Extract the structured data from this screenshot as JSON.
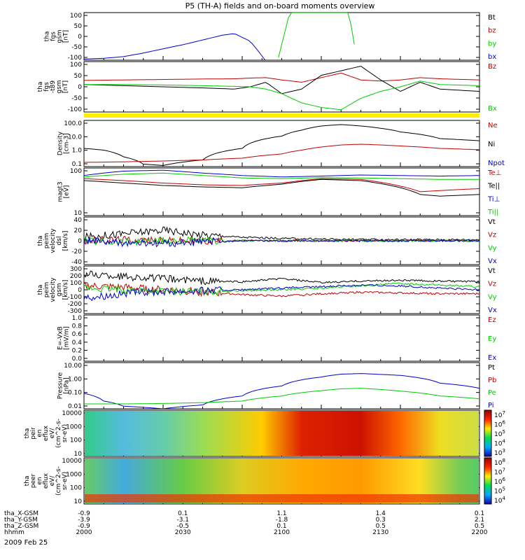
{
  "title": "P5 (TH-A) fields and on-board moments overview",
  "date_label": "2009 Feb 25",
  "colors": {
    "black": "#000000",
    "red": "#c00000",
    "green": "#00cc00",
    "blue": "#0000cc",
    "yellow": "#ffee00"
  },
  "chart_data": [
    {
      "type": "line",
      "panel": "fgs",
      "ylabel": [
        "tha",
        "fgs",
        "gsm",
        "[nT]"
      ],
      "yticks": [
        "100",
        "50",
        "0",
        "-50",
        "-100"
      ],
      "ylim": [
        -100,
        100
      ],
      "legend": [
        {
          "label": "Bt",
          "color": "black"
        },
        {
          "label": "bz",
          "color": "red"
        },
        {
          "label": "by",
          "color": "green"
        },
        {
          "label": "bx",
          "color": "blue"
        }
      ],
      "series": [
        {
          "name": "bx",
          "color": "blue",
          "x": [
            0,
            0.05,
            0.1,
            0.15,
            0.2,
            0.25,
            0.3,
            0.35,
            0.38,
            0.42,
            0.44,
            0.46
          ],
          "y": [
            -95,
            -92,
            -85,
            -70,
            -52,
            -35,
            -15,
            5,
            12,
            -20,
            -60,
            -105
          ]
        },
        {
          "name": "by",
          "color": "green",
          "x": [
            0.49,
            0.52,
            0.53,
            0.66,
            0.67,
            0.69
          ],
          "y": [
            -100,
            100,
            100,
            100,
            100,
            -100
          ]
        }
      ]
    },
    {
      "type": "line",
      "panel": "fgs_t89",
      "ylabel": [
        "tha",
        "fgs",
        "-t89",
        "gsm",
        "[nT]"
      ],
      "yticks": [
        "100",
        "50",
        "0",
        "-50",
        "-100"
      ],
      "ylim": [
        -120,
        100
      ],
      "legend": [
        {
          "label": "Bz",
          "color": "red"
        },
        {
          "label": "Bx",
          "color": "green"
        }
      ],
      "series": [
        {
          "name": "Bz",
          "color": "red",
          "x": [
            0,
            0.1,
            0.2,
            0.3,
            0.38,
            0.42,
            0.46,
            0.5,
            0.55,
            0.6,
            0.65,
            0.7,
            0.75,
            0.8,
            0.85,
            0.9,
            1
          ],
          "y": [
            18,
            20,
            22,
            24,
            25,
            28,
            30,
            20,
            10,
            30,
            50,
            20,
            15,
            20,
            30,
            25,
            20
          ]
        },
        {
          "name": "black",
          "color": "black",
          "x": [
            0,
            0.1,
            0.2,
            0.3,
            0.35,
            0.38,
            0.42,
            0.46,
            0.5,
            0.55,
            0.6,
            0.65,
            0.7,
            0.75,
            0.8,
            0.85,
            0.9,
            1
          ],
          "y": [
            0,
            -5,
            -10,
            -15,
            -18,
            -20,
            -10,
            10,
            -40,
            -20,
            40,
            60,
            80,
            20,
            -30,
            10,
            -20,
            -30
          ]
        },
        {
          "name": "Bx",
          "color": "green",
          "x": [
            0,
            0.1,
            0.2,
            0.3,
            0.38,
            0.42,
            0.46,
            0.5,
            0.55,
            0.6,
            0.65,
            0.7,
            0.75,
            0.8,
            0.85,
            0.9,
            1
          ],
          "y": [
            0,
            0,
            -2,
            -5,
            -8,
            -10,
            -20,
            -40,
            -80,
            -100,
            -110,
            -60,
            -30,
            -10,
            15,
            0,
            -5
          ]
        }
      ]
    },
    {
      "type": "line",
      "panel": "density",
      "ylog": true,
      "ylabel": [
        "Density",
        "[cm-3]"
      ],
      "yticks": [
        "100.0",
        "10.0",
        "1.0",
        "0.1"
      ],
      "ylim": [
        0.1,
        200
      ],
      "legend": [
        {
          "label": "Ne",
          "color": "red"
        },
        {
          "label": "Ni",
          "color": "black"
        },
        {
          "label": "Npot",
          "color": "blue"
        }
      ],
      "series": [
        {
          "name": "Ni",
          "color": "black",
          "x": [
            0,
            0.05,
            0.1,
            0.15,
            0.2,
            0.3,
            0.4,
            0.5,
            0.55,
            0.6,
            0.65,
            0.7,
            0.8,
            0.9,
            1
          ],
          "y": [
            2,
            1.5,
            0.5,
            0.15,
            0.12,
            0.3,
            2,
            15,
            40,
            80,
            100,
            80,
            30,
            10,
            7
          ]
        },
        {
          "name": "Ne",
          "color": "red",
          "x": [
            0,
            0.1,
            0.2,
            0.3,
            0.4,
            0.5,
            0.55,
            0.6,
            0.65,
            0.7,
            0.8,
            0.9,
            1
          ],
          "y": [
            0.2,
            0.22,
            0.25,
            0.3,
            0.4,
            0.8,
            1.5,
            2.5,
            3.5,
            4,
            3,
            2,
            1.6
          ]
        }
      ]
    },
    {
      "type": "line",
      "panel": "temperature",
      "ylog": true,
      "ylabel": [
        "magt3",
        "[eV]"
      ],
      "yticks": [
        "100",
        "10"
      ],
      "ylim": [
        10,
        800
      ],
      "legend": [
        {
          "label": "Te⊥",
          "color": "red"
        },
        {
          "label": "Te||",
          "color": "black"
        },
        {
          "label": "Ti⊥",
          "color": "blue"
        },
        {
          "label": "Ti||",
          "color": "green"
        }
      ],
      "series": [
        {
          "name": "Ti⊥",
          "color": "blue",
          "x": [
            0,
            0.1,
            0.2,
            0.3,
            0.4,
            0.5,
            0.6,
            0.7,
            0.8,
            0.9,
            1
          ],
          "y": [
            400,
            600,
            650,
            500,
            400,
            350,
            380,
            420,
            400,
            380,
            400
          ]
        },
        {
          "name": "Ti||",
          "color": "green",
          "x": [
            0,
            0.1,
            0.2,
            0.3,
            0.4,
            0.5,
            0.6,
            0.7,
            0.8,
            0.9,
            1
          ],
          "y": [
            350,
            450,
            500,
            400,
            320,
            300,
            330,
            320,
            300,
            280,
            280
          ]
        },
        {
          "name": "Te⊥",
          "color": "red",
          "x": [
            0,
            0.1,
            0.2,
            0.3,
            0.4,
            0.5,
            0.6,
            0.7,
            0.8,
            0.85,
            0.9,
            1
          ],
          "y": [
            300,
            250,
            200,
            170,
            160,
            200,
            300,
            280,
            150,
            90,
            100,
            120
          ]
        },
        {
          "name": "Te||",
          "color": "black",
          "x": [
            0,
            0.1,
            0.2,
            0.3,
            0.4,
            0.5,
            0.6,
            0.7,
            0.8,
            0.85,
            0.9,
            1
          ],
          "y": [
            250,
            200,
            160,
            140,
            130,
            180,
            280,
            250,
            130,
            70,
            60,
            70
          ]
        }
      ]
    },
    {
      "type": "line",
      "panel": "velocity_dsl",
      "ylabel": [
        "tha",
        "peim",
        "velocity",
        "dsl",
        "[km/s]"
      ],
      "yticks": [
        "40",
        "20",
        "0",
        "-20",
        "-40"
      ],
      "ylim": [
        -40,
        40
      ],
      "legend": [
        {
          "label": "Vt",
          "color": "black"
        },
        {
          "label": "Vz",
          "color": "red"
        },
        {
          "label": "Vy",
          "color": "green"
        },
        {
          "label": "Vx",
          "color": "blue"
        }
      ],
      "noisy": true,
      "series": [
        {
          "name": "Vt",
          "color": "black",
          "x": [
            0,
            0.1,
            0.2,
            0.3,
            0.4,
            0.5,
            0.6,
            0.7,
            0.8,
            0.9,
            1
          ],
          "y": [
            6,
            12,
            18,
            10,
            6,
            4,
            3,
            2,
            2,
            2,
            2
          ]
        },
        {
          "name": "Vz",
          "color": "red",
          "x": [
            0,
            0.1,
            0.2,
            0.3,
            0.4,
            0.5,
            0.6,
            0.7,
            0.8,
            0.9,
            1
          ],
          "y": [
            0,
            2,
            0,
            0,
            0,
            0,
            0,
            0,
            0,
            0,
            0
          ]
        },
        {
          "name": "Vy",
          "color": "green",
          "x": [
            0,
            0.1,
            0.2,
            0.3,
            0.4,
            0.5,
            0.6,
            0.7,
            0.8,
            0.9,
            1
          ],
          "y": [
            0,
            -2,
            0,
            0,
            0,
            0,
            0,
            0,
            0,
            0,
            0
          ]
        },
        {
          "name": "Vx",
          "color": "blue",
          "x": [
            0,
            0.1,
            0.2,
            0.3,
            0.4,
            0.5,
            0.6,
            0.7,
            0.8,
            0.9,
            1
          ],
          "y": [
            0,
            -4,
            -5,
            -2,
            0,
            0,
            0,
            0,
            0,
            0,
            0
          ]
        }
      ]
    },
    {
      "type": "line",
      "panel": "velocity_gsm",
      "ylabel": [
        "tha",
        "peim",
        "velocity",
        "gsm",
        "[km/s]"
      ],
      "yticks": [
        "300",
        "200",
        "100",
        "0",
        "-100",
        "-200",
        "-300"
      ],
      "ylim": [
        -300,
        300
      ],
      "legend": [
        {
          "label": "Vt",
          "color": "black"
        },
        {
          "label": "Vz",
          "color": "red"
        },
        {
          "label": "Vy",
          "color": "green"
        },
        {
          "label": "Vx",
          "color": "blue"
        }
      ],
      "noisy": true,
      "series": [
        {
          "name": "Vt",
          "color": "black",
          "x": [
            0,
            0.1,
            0.2,
            0.3,
            0.4,
            0.5,
            0.6,
            0.7,
            0.8,
            0.9,
            1
          ],
          "y": [
            200,
            170,
            140,
            110,
            100,
            140,
            90,
            110,
            120,
            110,
            100
          ]
        },
        {
          "name": "Vz",
          "color": "red",
          "x": [
            0,
            0.1,
            0.2,
            0.3,
            0.4,
            0.5,
            0.6,
            0.7,
            0.8,
            0.9,
            1
          ],
          "y": [
            50,
            30,
            0,
            -30,
            -60,
            -80,
            -50,
            -30,
            -40,
            -50,
            -50
          ]
        },
        {
          "name": "Vy",
          "color": "green",
          "x": [
            0,
            0.1,
            0.2,
            0.3,
            0.4,
            0.5,
            0.6,
            0.7,
            0.8,
            0.9,
            1
          ],
          "y": [
            20,
            0,
            -20,
            -20,
            -10,
            0,
            20,
            50,
            80,
            60,
            40
          ]
        },
        {
          "name": "Vx",
          "color": "blue",
          "x": [
            0,
            0.1,
            0.2,
            0.3,
            0.4,
            0.5,
            0.6,
            0.7,
            0.8,
            0.9,
            1
          ],
          "y": [
            -100,
            -50,
            -20,
            -10,
            0,
            20,
            40,
            60,
            50,
            20,
            0
          ]
        }
      ]
    },
    {
      "type": "line",
      "panel": "efield",
      "ylabel": [
        "E=-VxB",
        "[mV/m]"
      ],
      "yticks": [
        "1.0",
        "0.8",
        "0.6",
        "0.4",
        "0.2",
        "0.0"
      ],
      "ylim": [
        0,
        1
      ],
      "legend": [
        {
          "label": "Ez",
          "color": "red"
        },
        {
          "label": "Ey",
          "color": "green"
        },
        {
          "label": "Ex",
          "color": "blue"
        }
      ],
      "series": []
    },
    {
      "type": "line",
      "panel": "pressure",
      "ylog": true,
      "ylabel": [
        "Pressure",
        "[nPa]"
      ],
      "yticks": [
        "10.00",
        "1.00",
        "0.10",
        "0.01"
      ],
      "ylim": [
        0.005,
        20
      ],
      "legend": [
        {
          "label": "Pt",
          "color": "black"
        },
        {
          "label": "Pb",
          "color": "red"
        },
        {
          "label": "Pe",
          "color": "green"
        },
        {
          "label": "Pi",
          "color": "blue"
        }
      ],
      "series": [
        {
          "name": "Pi",
          "color": "blue",
          "x": [
            0,
            0.05,
            0.1,
            0.2,
            0.3,
            0.4,
            0.5,
            0.6,
            0.65,
            0.7,
            0.8,
            0.9,
            1
          ],
          "y": [
            0.08,
            0.02,
            0.008,
            0.005,
            0.01,
            0.05,
            0.3,
            1.5,
            2.5,
            2.8,
            2,
            0.5,
            0.2
          ]
        },
        {
          "name": "Pe",
          "color": "green",
          "x": [
            0,
            0.1,
            0.2,
            0.3,
            0.4,
            0.5,
            0.6,
            0.65,
            0.7,
            0.8,
            0.9,
            1
          ],
          "y": [
            0.012,
            0.012,
            0.013,
            0.015,
            0.02,
            0.05,
            0.13,
            0.18,
            0.2,
            0.12,
            0.05,
            0.03
          ]
        }
      ]
    },
    {
      "type": "heatmap",
      "panel": "peir_en",
      "ylabel": [
        "tha",
        "peir",
        "en",
        "eflux",
        "eV/",
        "(cm^2-s-",
        "sr-eV)"
      ],
      "yticks": [
        "10000",
        "1000",
        "100",
        "10"
      ],
      "colorbar_ticks": [
        "10^7",
        "10^6",
        "10^5",
        "10^4",
        "10^3"
      ]
    },
    {
      "type": "heatmap",
      "panel": "peer_en",
      "ylabel": [
        "tha",
        "peer",
        "en",
        "eflux",
        "eV/",
        "(cm^2-s-",
        "sr-eV)"
      ],
      "yticks": [
        "10000",
        "1000",
        "100",
        "10"
      ],
      "colorbar_ticks": [
        "10^8",
        "10^7",
        "10^6",
        "10^5",
        "10^4"
      ]
    }
  ],
  "orbit": {
    "rows": [
      {
        "label": "tha_X-GSM",
        "values": [
          "-0.9",
          "0.1",
          "1.1",
          "1.4",
          "0.1"
        ]
      },
      {
        "label": "tha_Y-GSM",
        "values": [
          "-3.9",
          "-3.1",
          "-1.8",
          "0.3",
          "2.1"
        ]
      },
      {
        "label": "tha_Z-GSM",
        "values": [
          "-0.9",
          "-0.5",
          "0.1",
          "0.5",
          "0.5"
        ]
      },
      {
        "label": "hhmm",
        "values": [
          "2000",
          "2030",
          "2100",
          "2130",
          "2200"
        ]
      }
    ]
  }
}
